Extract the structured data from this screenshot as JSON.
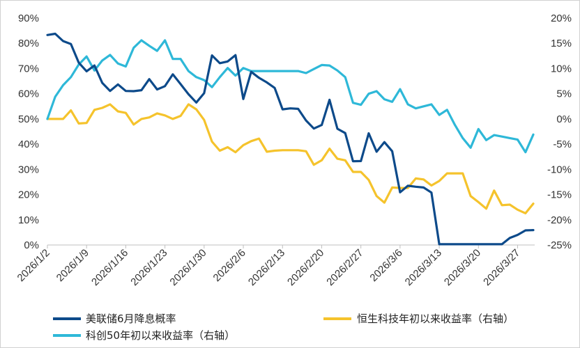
{
  "chart_data": {
    "type": "line",
    "title": "",
    "x": [
      "2026/1/2",
      "2026/1/5",
      "2026/1/6",
      "2026/1/7",
      "2026/1/8",
      "2026/1/9",
      "2026/1/12",
      "2026/1/13",
      "2026/1/14",
      "2026/1/15",
      "2026/1/16",
      "2026/1/19",
      "2026/1/20",
      "2026/1/21",
      "2026/1/22",
      "2026/1/23",
      "2026/1/26",
      "2026/1/27",
      "2026/1/28",
      "2026/1/29",
      "2026/1/30",
      "2026/2/2",
      "2026/2/3",
      "2026/2/4",
      "2026/2/5",
      "2026/2/6",
      "2026/2/9",
      "2026/2/10",
      "2026/2/11",
      "2026/2/12",
      "2026/2/13",
      "2026/2/16",
      "2026/2/17",
      "2026/2/18",
      "2026/2/19",
      "2026/2/20",
      "2026/2/23",
      "2026/2/24",
      "2026/2/25",
      "2026/2/26",
      "2026/2/27",
      "2026/3/2",
      "2026/3/3",
      "2026/3/4",
      "2026/3/5",
      "2026/3/6",
      "2026/3/9",
      "2026/3/10",
      "2026/3/11",
      "2026/3/12",
      "2026/3/13",
      "2026/3/16",
      "2026/3/17",
      "2026/3/18",
      "2026/3/19",
      "2026/3/20",
      "2026/3/23",
      "2026/3/24",
      "2026/3/25",
      "2026/3/26",
      "2026/3/27",
      "2026/3/30",
      "2026/3/31"
    ],
    "x_tick_labels": [
      "2026/1/2",
      "2026/1/9",
      "2026/1/16",
      "2026/1/23",
      "2026/1/30",
      "2026/2/6",
      "2026/2/13",
      "2026/2/20",
      "2026/2/27",
      "2026/3/6",
      "2026/3/13",
      "2026/3/20",
      "2026/3/27"
    ],
    "left_axis": {
      "ylim": [
        0,
        90
      ],
      "ticks": [
        "0%",
        "10%",
        "20%",
        "30%",
        "40%",
        "50%",
        "60%",
        "70%",
        "80%",
        "90%"
      ]
    },
    "right_axis": {
      "ylim": [
        -25,
        20
      ],
      "ticks": [
        "-25%",
        "-20%",
        "-15%",
        "-10%",
        "-5%",
        "0%",
        "5%",
        "10%",
        "15%",
        "20%"
      ]
    },
    "series": [
      {
        "name": "美联储6月降息概率",
        "axis": "left",
        "color": "#0d4a8a",
        "values": [
          83.3,
          83.8,
          80.9,
          79.7,
          72.3,
          68.9,
          71.2,
          64.3,
          61.1,
          63.7,
          61.1,
          61.0,
          61.4,
          65.8,
          61.7,
          63.0,
          67.7,
          63.8,
          59.8,
          56.5,
          60.2,
          75.2,
          72.1,
          72.8,
          75.3,
          57.9,
          68.7,
          66.3,
          64.5,
          62.3,
          53.8,
          54.2,
          54.0,
          49.4,
          46.2,
          47.6,
          57.6,
          46.1,
          44.4,
          33.2,
          33.3,
          44.3,
          37.0,
          40.8,
          37.2,
          20.9,
          23.5,
          23.1,
          22.8,
          20.8,
          0.3,
          0.3,
          0.3,
          0.3,
          0.3,
          0.3,
          0.3,
          0.3,
          0.3,
          2.8,
          4.0,
          5.8,
          5.9
        ]
      },
      {
        "name": "恒生科技年初以来收益率（右轴）",
        "axis": "right",
        "color": "#f5c32c",
        "values": [
          0.0,
          0.0,
          0.0,
          1.7,
          -0.9,
          -0.8,
          1.8,
          2.2,
          2.9,
          1.5,
          1.2,
          -1.1,
          0.0,
          0.3,
          1.1,
          0.7,
          0.0,
          0.6,
          2.9,
          1.9,
          -0.2,
          -4.5,
          -6.3,
          -5.6,
          -6.6,
          -5.2,
          -4.4,
          -3.9,
          -6.5,
          -6.3,
          -6.2,
          -6.2,
          -6.2,
          -6.4,
          -9.1,
          -8.2,
          -5.9,
          -7.9,
          -8.2,
          -10.5,
          -10.5,
          -12.1,
          -15.3,
          -16.6,
          -13.6,
          -13.7,
          -13.7,
          -11.8,
          -12.0,
          -13.2,
          -12.3,
          -10.8,
          -10.8,
          -10.8,
          -15.3,
          -16.5,
          -17.8,
          -14.2,
          -17.1,
          -17.0,
          -18.0,
          -18.7,
          -16.8
        ]
      },
      {
        "name": "科创50年初以来收益率（右轴）",
        "axis": "right",
        "color": "#2eb8d8",
        "values": [
          0.0,
          4.4,
          6.7,
          8.3,
          10.8,
          12.4,
          9.6,
          11.6,
          12.7,
          11.0,
          10.4,
          14.1,
          15.6,
          14.5,
          13.5,
          15.6,
          11.9,
          11.9,
          9.5,
          8.3,
          7.7,
          6.3,
          8.3,
          10.1,
          8.6,
          10.1,
          9.5,
          9.5,
          9.5,
          9.5,
          9.5,
          9.5,
          9.5,
          9.1,
          9.9,
          10.7,
          10.6,
          9.6,
          8.3,
          3.2,
          2.8,
          5.0,
          5.5,
          3.9,
          3.4,
          5.9,
          2.9,
          2.1,
          2.5,
          2.9,
          0.8,
          1.8,
          -1.2,
          -3.8,
          -5.7,
          -2.0,
          -4.2,
          -3.2,
          -3.5,
          -3.8,
          -4.1,
          -6.6,
          -3.1
        ]
      }
    ],
    "legend_position": "bottom",
    "grid": false
  }
}
